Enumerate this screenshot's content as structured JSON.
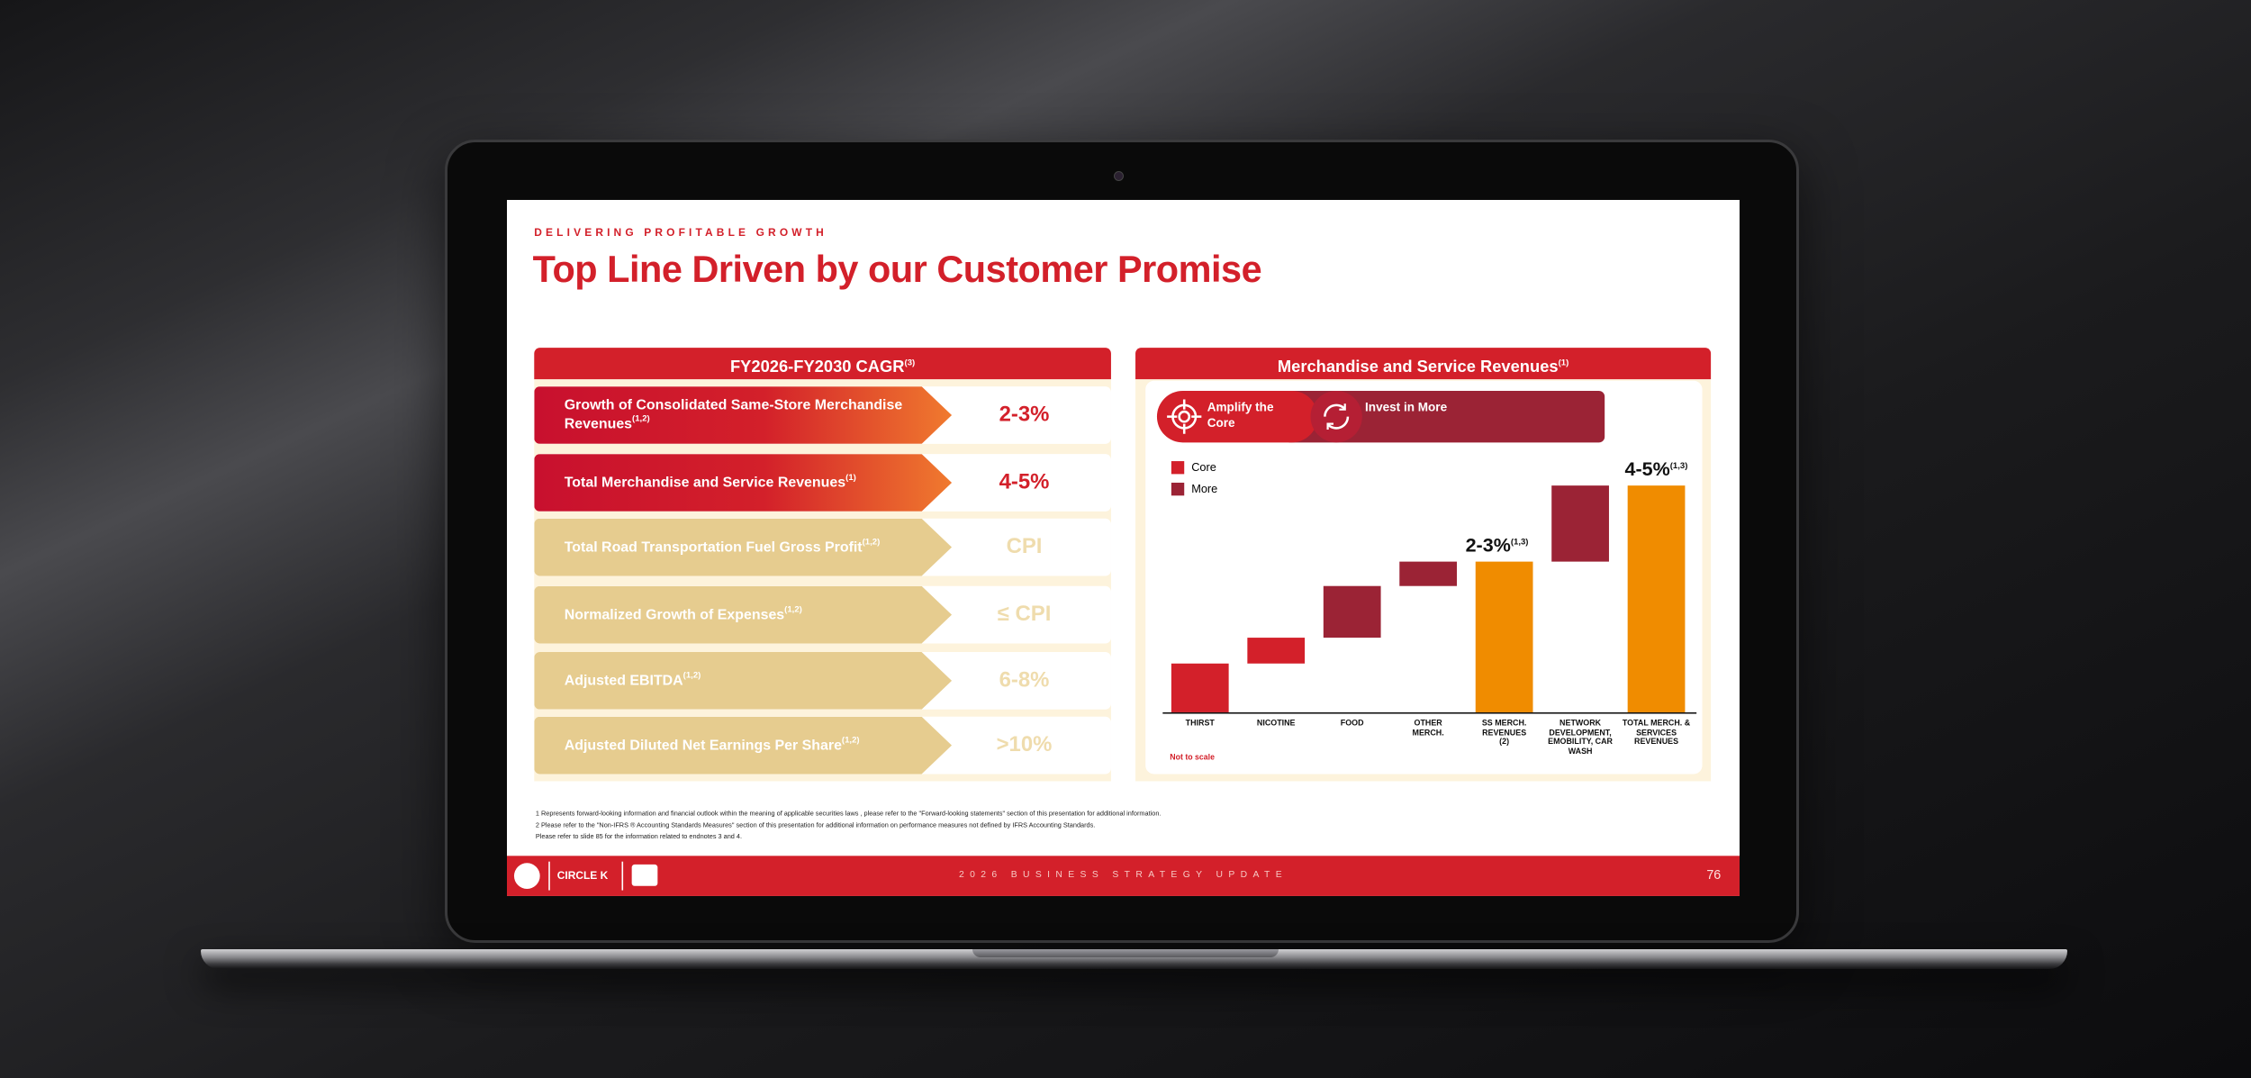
{
  "header": {
    "kicker": "DELIVERING PROFITABLE GROWTH",
    "title": "Top Line Driven by our Customer Promise"
  },
  "left_panel": {
    "title": "FY2026-FY2030 CAGR",
    "title_sup": "(3)",
    "rows": [
      {
        "label": "Growth of Consolidated Same-Store Merchandise Revenues",
        "sup": "(1,2)",
        "value": "2-3%"
      },
      {
        "label": "Total Merchandise and Service Revenues",
        "sup": "(1)",
        "value": "4-5%"
      },
      {
        "label": "Total Road Transportation Fuel Gross Profit",
        "sup": "(1,2)",
        "value": "CPI"
      },
      {
        "label": "Normalized Growth of Expenses",
        "sup": "(1,2)",
        "value": "≤ CPI"
      },
      {
        "label": "Adjusted EBITDA",
        "sup": "(1,2)",
        "value": "6-8%"
      },
      {
        "label": "Adjusted Diluted Net Earnings Per Share",
        "sup": "(1,2)",
        "value": ">10%"
      }
    ]
  },
  "right_panel": {
    "title": "Merchandise and Service Revenues",
    "title_sup": "(1)",
    "pill": {
      "amplify": "Amplify the Core",
      "invest": "Invest in More"
    },
    "legend": [
      "Core",
      "More"
    ],
    "categories": [
      "THIRST",
      "NICOTINE",
      "FOOD",
      "OTHER MERCH.",
      "SS MERCH. REVENUES (2)",
      "NETWORK DEVELOPMENT, EMOBILITY, CAR WASH",
      "TOTAL MERCH. & SERVICES REVENUES"
    ],
    "bar_labels": [
      {
        "text": "2-3%",
        "sup": "(1,3)"
      },
      {
        "text": "4-5%",
        "sup": "(1,3)"
      }
    ],
    "note": "Not to scale"
  },
  "footnotes": [
    "1  Represents forward-looking information and financial outlook within the meaning of applicable securities laws , please refer to the \"Forward-looking statements\" section of this presentation for additional information.",
    "2  Please refer to the \"Non-IFRS ® Accounting Standards Measures\" section of this presentation for additional information on performance measures not defined by IFRS Accounting Standards.",
    "Please refer to slide 85 for the information related to endnotes 3 and 4."
  ],
  "footer": {
    "logo": "CIRCLE K",
    "text": "2026 BUSINESS STRATEGY UPDATE",
    "page": "76"
  }
}
